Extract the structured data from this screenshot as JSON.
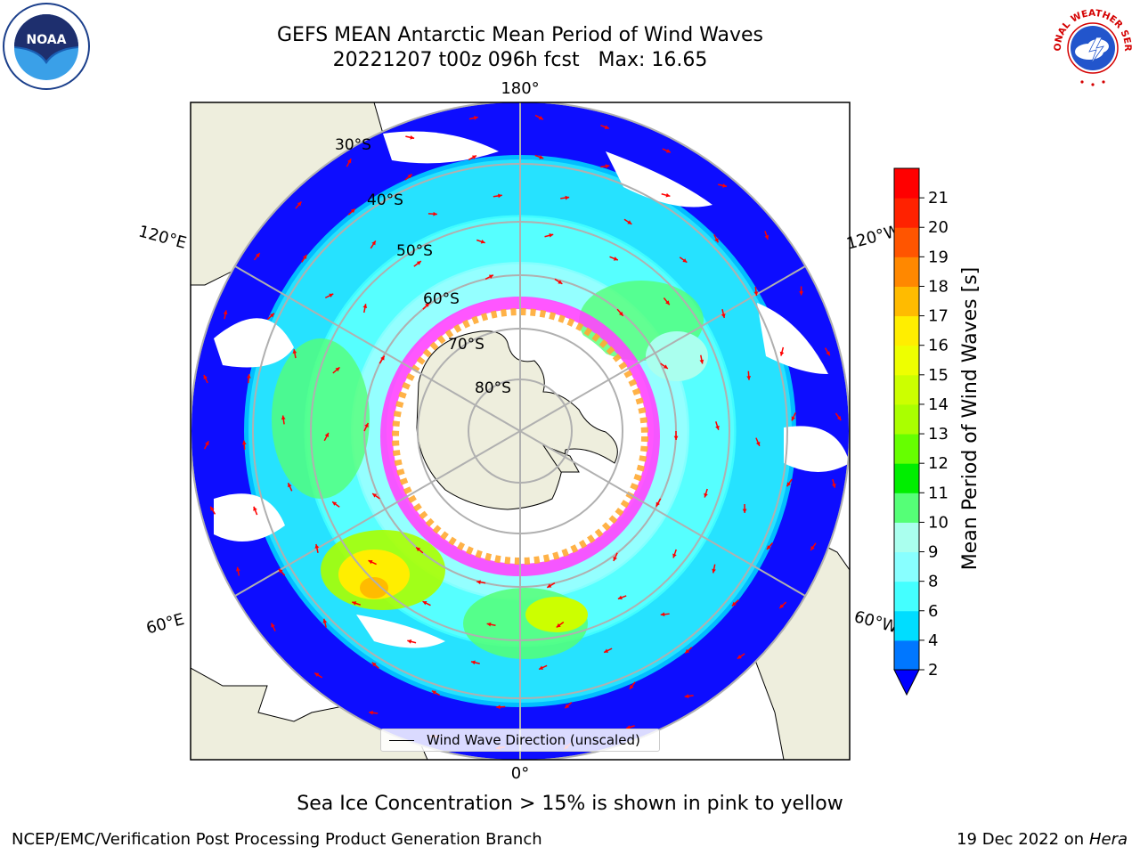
{
  "title": {
    "line1": "GEFS MEAN Antarctic Mean Period of Wind Waves",
    "line2": "20221207 t00z 096h fcst   Max: 16.65"
  },
  "logos": {
    "left": {
      "icon": "noaa-logo",
      "text": "NOAA"
    },
    "right": {
      "icon": "nws-logo",
      "text": "NATIONAL WEATHER SERVICE"
    }
  },
  "map": {
    "projection": "south-polar-stereographic",
    "longitude_labels": {
      "top": "180°",
      "bottom": "0°",
      "upper_left": "120°E",
      "upper_right": "120°W",
      "lower_left": "60°E",
      "lower_right": "60°W"
    },
    "latitude_labels": [
      "30°S",
      "40°S",
      "50°S",
      "60°S",
      "70°S",
      "80°S"
    ],
    "colors": {
      "land": "#eeeedd",
      "ocean_white": "#ffffff",
      "grid": "#b0b0b0",
      "arrow": "#ff0000",
      "sea_ice_pink": "#ff44ff",
      "sea_ice_orange": "#ffaa33"
    }
  },
  "legend": {
    "label": "Wind Wave Direction (unscaled)"
  },
  "colorbar": {
    "label": "Mean Period of Wind Waves [s]",
    "ticks": [
      "2",
      "4",
      "6",
      "8",
      "9",
      "10",
      "11",
      "12",
      "13",
      "14",
      "15",
      "16",
      "17",
      "18",
      "19",
      "20",
      "21"
    ],
    "colors": [
      "#0000ff",
      "#0077ff",
      "#00ddff",
      "#44ffff",
      "#88ffff",
      "#aaffee",
      "#55ff77",
      "#00ee00",
      "#66ff00",
      "#aaff00",
      "#ccff00",
      "#eeff00",
      "#ffee00",
      "#ffbb00",
      "#ff8800",
      "#ff5500",
      "#ff2200",
      "#ff0000"
    ],
    "extend": "min"
  },
  "subtitle": "Sea Ice Concentration > 15% is shown in pink to yellow",
  "footer": {
    "left": "NCEP/EMC/Verification Post Processing Product Generation Branch",
    "date": "19 Dec 2022 on",
    "machine": "Hera"
  }
}
